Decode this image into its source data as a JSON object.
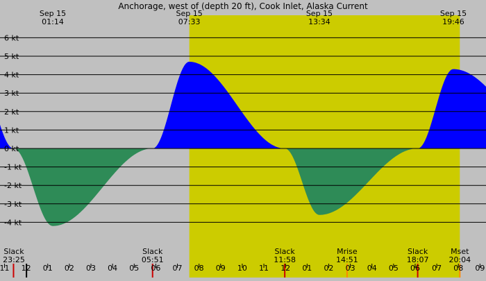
{
  "chart_data": {
    "type": "area",
    "title": "Anchorage, west of (depth 20 ft), Cook Inlet, Alaska Current",
    "y_unit": "kt",
    "ylim": [
      -4.5,
      6
    ],
    "y_ticks": [
      6,
      5,
      4,
      3,
      2,
      1,
      0,
      -1,
      -2,
      -3,
      -4
    ],
    "y_tick_labels": [
      "6 kt",
      "5 kt",
      "4 kt",
      "3 kt",
      "2 kt",
      "1 kt",
      "0 kt",
      "-1 kt",
      "-2 kt",
      "-3 kt",
      "-4 kt"
    ],
    "grid": true,
    "x_hours": [
      11,
      12,
      1,
      2,
      3,
      4,
      5,
      6,
      7,
      8,
      9,
      10,
      11,
      12,
      1,
      2,
      3,
      4,
      5,
      6,
      7,
      8,
      9
    ],
    "x_hour_labels": [
      "11",
      "12",
      "01",
      "02",
      "03",
      "04",
      "05",
      "06",
      "07",
      "08",
      "09",
      "10",
      "11",
      "12",
      "01",
      "02",
      "03",
      "04",
      "05",
      "06",
      "07",
      "08",
      "09"
    ],
    "daylight": {
      "start": "07:33",
      "end": "20:04"
    },
    "colors": {
      "background": "#c0c0c0",
      "daylight": "#cccc00",
      "flood": "#0000ff",
      "ebb": "#2e8b57",
      "grid": "#000000"
    },
    "extremes": [
      {
        "date": "Sep 15",
        "time": "01:14",
        "value": -4.2
      },
      {
        "date": "Sep 15",
        "time": "07:33",
        "value": 4.7
      },
      {
        "date": "Sep 15",
        "time": "13:34",
        "value": -3.6
      },
      {
        "date": "Sep 15",
        "time": "19:46",
        "value": 4.3
      }
    ],
    "events": [
      {
        "label": "Slack",
        "time": "23:25"
      },
      {
        "label": "Slack",
        "time": "05:51"
      },
      {
        "label": "Slack",
        "time": "11:58"
      },
      {
        "label": "Mrise",
        "time": "14:51"
      },
      {
        "label": "Slack",
        "time": "18:07"
      },
      {
        "label": "Mset",
        "time": "20:04"
      }
    ]
  }
}
